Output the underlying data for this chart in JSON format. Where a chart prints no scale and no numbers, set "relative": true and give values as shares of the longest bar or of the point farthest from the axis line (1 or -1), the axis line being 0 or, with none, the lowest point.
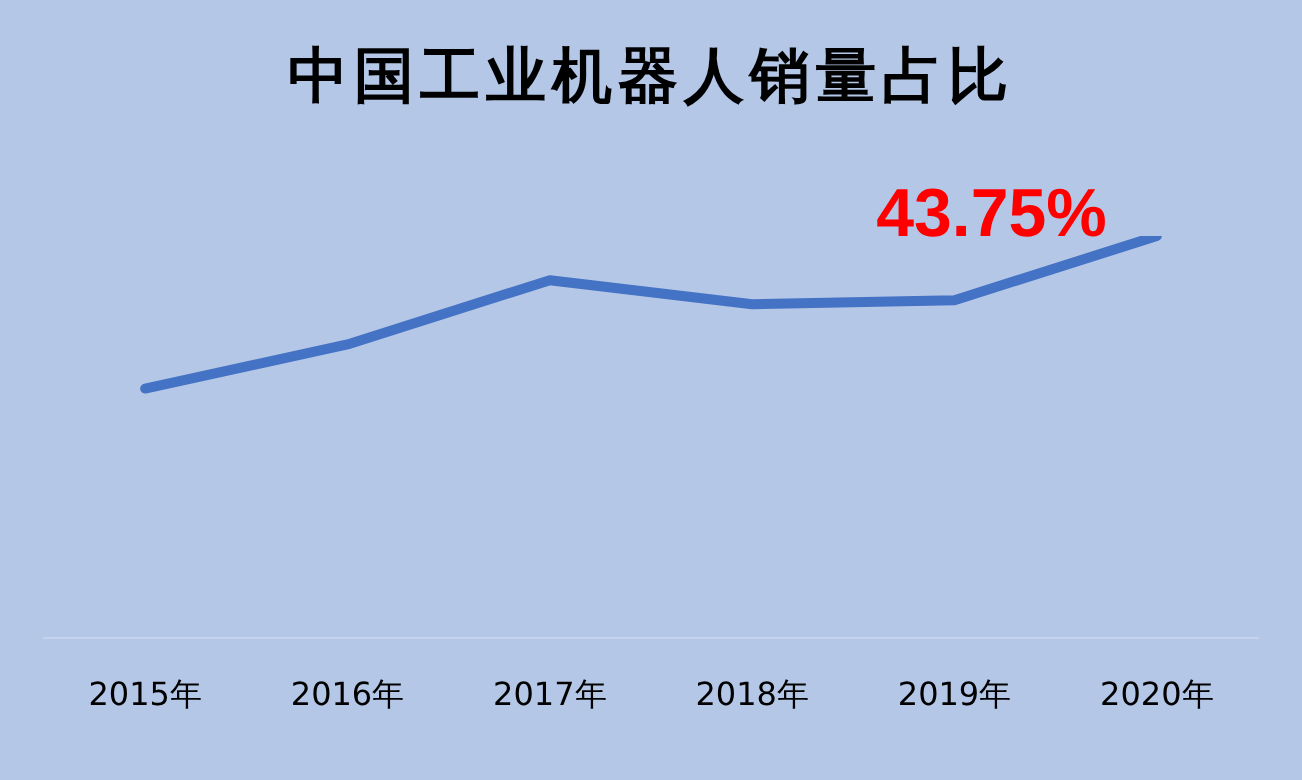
{
  "chart_data": {
    "type": "line",
    "title": "中国工业机器人销量占比",
    "categories": [
      "2015年",
      "2016年",
      "2017年",
      "2018年",
      "2019年",
      "2020年"
    ],
    "relative": true,
    "series": [
      {
        "color": "#4472c4",
        "values": [
          0.62,
          0.73,
          0.89,
          0.83,
          0.84,
          1
        ]
      }
    ],
    "annotations": [
      {
        "text": "43.75%",
        "x": "2020年",
        "y": 1
      }
    ]
  }
}
